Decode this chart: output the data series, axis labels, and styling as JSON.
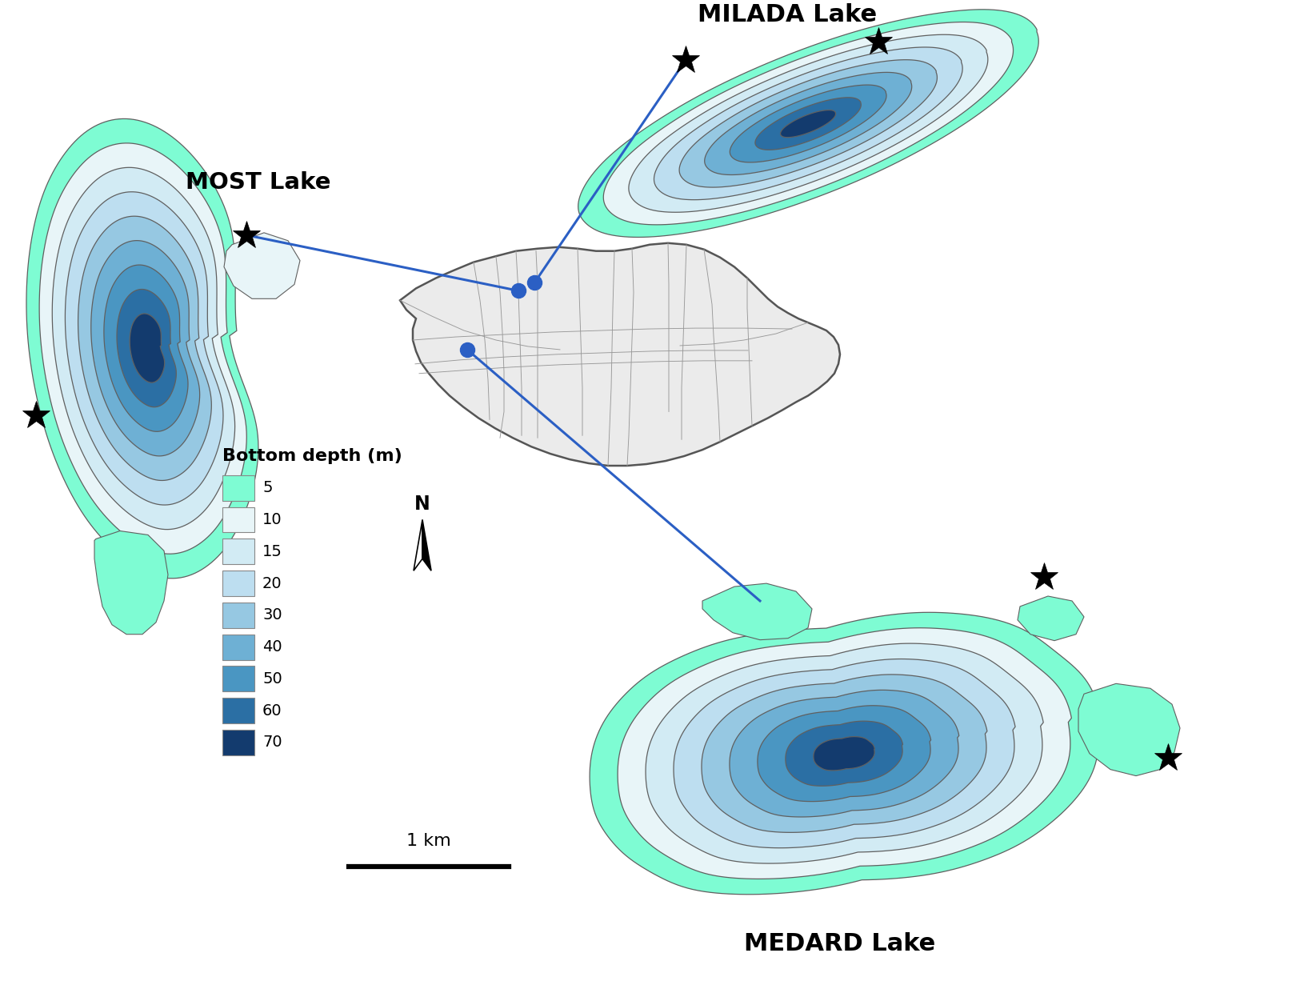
{
  "depth_levels": [
    5,
    10,
    15,
    20,
    30,
    40,
    50,
    60,
    70
  ],
  "depth_colors": [
    "#7EFCD3",
    "#E8F5F8",
    "#D2EBF4",
    "#BDDEF0",
    "#96C8E2",
    "#6EB0D4",
    "#4A96C2",
    "#2B6FA4",
    "#133B6E"
  ],
  "legend_title": "Bottom depth (m)",
  "scale_bar_label": "1 km",
  "background_color": "#FFFFFF",
  "outline_color": "#606060",
  "line_color": "#2B5FC4",
  "dot_color": "#2B5FC4"
}
